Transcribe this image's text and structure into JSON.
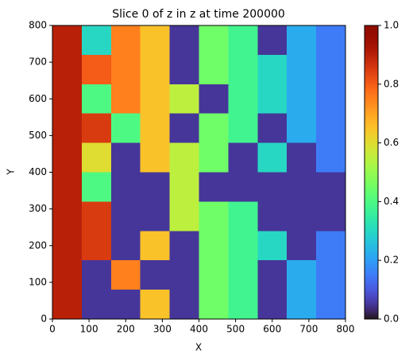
{
  "chart_data": {
    "type": "heatmap",
    "title": "Slice 0 of z in z at time 200000",
    "x_label": "X",
    "y_label": "Y",
    "colormap": "turbo",
    "x": [
      40,
      120,
      200,
      280,
      360,
      440,
      520,
      600,
      680,
      760
    ],
    "y": [
      760,
      680,
      600,
      520,
      440,
      360,
      280,
      200,
      120,
      40
    ],
    "values": [
      [
        0.9,
        0.3,
        0.75,
        0.65,
        0.05,
        0.45,
        0.38,
        0.05,
        0.22,
        0.15
      ],
      [
        0.9,
        0.8,
        0.75,
        0.65,
        0.05,
        0.45,
        0.38,
        0.3,
        0.22,
        0.15
      ],
      [
        0.9,
        0.4,
        0.75,
        0.65,
        0.55,
        0.05,
        0.38,
        0.3,
        0.22,
        0.15
      ],
      [
        0.9,
        0.85,
        0.4,
        0.65,
        0.05,
        0.45,
        0.38,
        0.05,
        0.22,
        0.15
      ],
      [
        0.9,
        0.6,
        0.05,
        0.65,
        0.55,
        0.45,
        0.05,
        0.3,
        0.05,
        0.15
      ],
      [
        0.9,
        0.4,
        0.05,
        0.05,
        0.55,
        0.05,
        0.05,
        0.05,
        0.05,
        0.05
      ],
      [
        0.9,
        0.85,
        0.05,
        0.05,
        0.55,
        0.45,
        0.38,
        0.05,
        0.05,
        0.05
      ],
      [
        0.9,
        0.85,
        0.05,
        0.65,
        0.05,
        0.45,
        0.38,
        0.3,
        0.05,
        0.15
      ],
      [
        0.9,
        0.05,
        0.75,
        0.05,
        0.05,
        0.45,
        0.38,
        0.05,
        0.22,
        0.15
      ],
      [
        0.9,
        0.05,
        0.05,
        0.65,
        0.05,
        0.45,
        0.38,
        0.05,
        0.22,
        0.15
      ]
    ],
    "xlim": [
      0,
      800
    ],
    "ylim": [
      0,
      800
    ],
    "xticks": [
      0,
      100,
      200,
      300,
      400,
      500,
      600,
      700,
      800
    ],
    "yticks": [
      0,
      100,
      200,
      300,
      400,
      500,
      600,
      700,
      800
    ],
    "clim": [
      0,
      1
    ],
    "cticks": [
      {
        "value": 0,
        "label": "0.0"
      },
      0.2,
      0.4,
      0.6,
      0.8,
      {
        "value": 1,
        "label": "1.0"
      }
    ]
  }
}
